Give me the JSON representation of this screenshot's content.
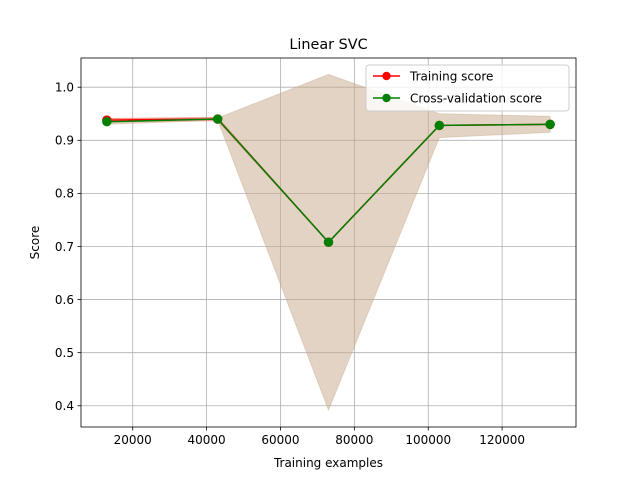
{
  "chart_data": {
    "type": "line",
    "title": "Linear SVC",
    "xlabel": "Training examples",
    "ylabel": "Score",
    "xlim": [
      6000,
      140000
    ],
    "ylim": [
      0.36,
      1.055
    ],
    "xticks": [
      20000,
      40000,
      60000,
      80000,
      100000,
      120000
    ],
    "xtick_labels": [
      "20000",
      "40000",
      "60000",
      "80000",
      "100000",
      "120000"
    ],
    "yticks": [
      0.4,
      0.5,
      0.6,
      0.7,
      0.8,
      0.9,
      1.0
    ],
    "ytick_labels": [
      "0.4",
      "0.5",
      "0.6",
      "0.7",
      "0.8",
      "0.9",
      "1.0"
    ],
    "grid": true,
    "legend_position": "top-right",
    "x": [
      13000,
      43000,
      73000,
      103000,
      133000
    ],
    "series": [
      {
        "name": "Training score",
        "color": "#ff0000",
        "values": [
          0.938,
          0.94,
          0.708,
          0.928,
          0.93
        ],
        "band_lower": [
          0.935,
          0.937,
          0.708,
          0.928,
          0.93
        ],
        "band_upper": [
          0.941,
          0.943,
          0.708,
          0.928,
          0.93
        ],
        "band_color": "#ff0000"
      },
      {
        "name": "Cross-validation score",
        "color": "#008000",
        "values": [
          0.935,
          0.94,
          0.708,
          0.928,
          0.93
        ],
        "band_lower": [
          0.93,
          0.938,
          0.392,
          0.905,
          0.915
        ],
        "band_upper": [
          0.94,
          0.942,
          1.024,
          0.95,
          0.945
        ],
        "band_color": "#008000"
      }
    ],
    "band_overlay_color": "#c8a88a"
  }
}
